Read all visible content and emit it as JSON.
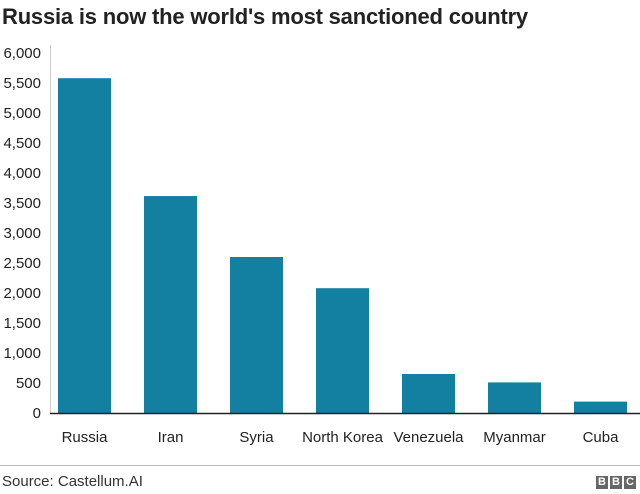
{
  "chart_data": {
    "type": "bar",
    "title": "Russia is now the world's most sanctioned country",
    "categories": [
      "Russia",
      "Iran",
      "Syria",
      "North Korea",
      "Venezuela",
      "Myanmar",
      "Cuba"
    ],
    "values": [
      5580,
      3616,
      2600,
      2080,
      650,
      510,
      190
    ],
    "ylim": [
      0,
      6000
    ],
    "yticks": [
      "0",
      "500",
      "1,000",
      "1,500",
      "2,000",
      "2,500",
      "3,000",
      "3,500",
      "4,000",
      "4,500",
      "5,000",
      "5,500",
      "6,000"
    ],
    "ytick_values": [
      0,
      500,
      1000,
      1500,
      2000,
      2500,
      3000,
      3500,
      4000,
      4500,
      5000,
      5500,
      6000
    ],
    "xlabel": "",
    "ylabel": "",
    "grid": false,
    "bar_color": "#1380A1"
  },
  "footer": {
    "source": "Source: Castellum.AI",
    "logo": [
      "B",
      "B",
      "C"
    ]
  }
}
